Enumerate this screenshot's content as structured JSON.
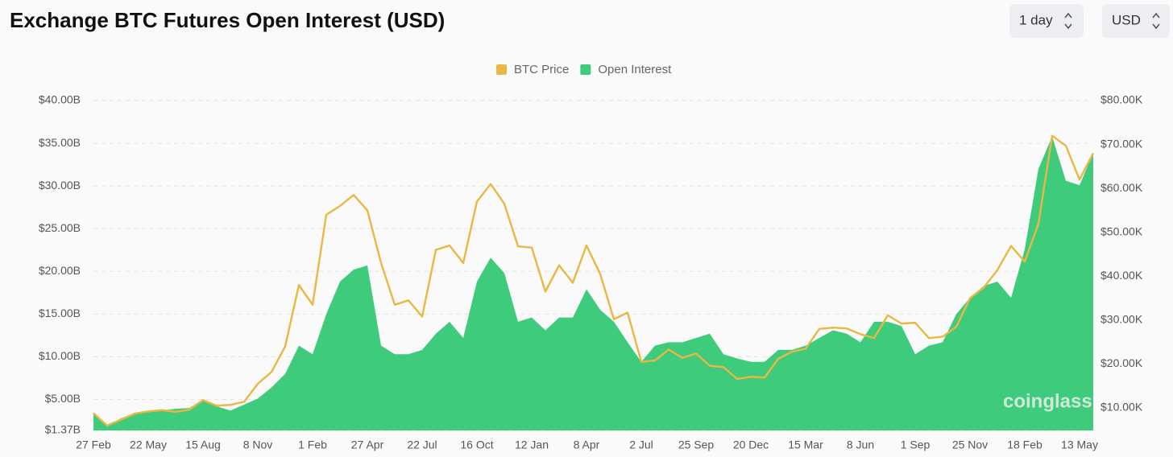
{
  "chart_data": {
    "type": "dual-axis-area-line",
    "title": "Exchange BTC Futures Open Interest (USD)",
    "controls": {
      "interval": "1 day",
      "currency": "USD"
    },
    "watermark": "coinglass",
    "legend": "top",
    "grid": true,
    "categories": [
      "27 Feb",
      null,
      null,
      null,
      "22 May",
      null,
      null,
      null,
      "15 Aug",
      null,
      null,
      null,
      "8 Nov",
      null,
      null,
      null,
      "1 Feb",
      null,
      null,
      null,
      "27 Apr",
      null,
      null,
      null,
      "22 Jul",
      null,
      null,
      null,
      "16 Oct",
      null,
      null,
      null,
      "12 Jan",
      null,
      null,
      null,
      "8 Apr",
      null,
      null,
      null,
      "2 Jul",
      null,
      null,
      null,
      "25 Sep",
      null,
      null,
      null,
      "20 Dec",
      null,
      null,
      null,
      "15 Mar",
      null,
      null,
      null,
      "8 Jun",
      null,
      null,
      null,
      "1 Sep",
      null,
      null,
      null,
      "25 Nov",
      null,
      null,
      null,
      "18 Feb",
      null,
      null,
      null,
      "13 May",
      null
    ],
    "series": [
      {
        "name": "BTC Price",
        "color": "#e9b744",
        "axis": "y2",
        "kind": "line",
        "values": [
          8.8,
          6,
          7.3,
          8.7,
          9.2,
          9.5,
          9.1,
          9.6,
          11.8,
          10.5,
          10.7,
          11.4,
          15.5,
          18.2,
          24,
          38,
          33.5,
          54,
          56,
          58.5,
          55,
          43,
          33.5,
          34.5,
          30.8,
          46,
          47,
          43,
          57,
          61,
          56.5,
          46.8,
          46.5,
          36.5,
          42.5,
          38.5,
          47,
          40.5,
          30.2,
          31.7,
          20.5,
          20.8,
          23.3,
          21.4,
          22.4,
          19.6,
          19.3,
          16.6,
          17.1,
          16.9,
          21.2,
          22.8,
          23.5,
          28,
          28.3,
          28.1,
          26.8,
          25.9,
          31.1,
          29.2,
          29.4,
          25.9,
          26.2,
          28.5,
          35,
          37.4,
          41.4,
          46.9,
          43.3,
          52,
          72,
          69.7,
          62,
          68
        ]
      },
      {
        "name": "Open Interest",
        "color": "#3fcb7c",
        "axis": "y",
        "kind": "area",
        "values": [
          3.3,
          1.8,
          2.8,
          3.3,
          3.5,
          3.7,
          3.9,
          4.0,
          5.0,
          4.2,
          3.7,
          4.4,
          5.1,
          6.4,
          8,
          11.3,
          10.3,
          15,
          18.8,
          20.2,
          20.7,
          11.3,
          10.3,
          10.3,
          10.8,
          12.7,
          14.1,
          12.2,
          18.8,
          21.6,
          19.8,
          14.1,
          14.6,
          13.1,
          14.6,
          14.6,
          17.9,
          15.5,
          14.1,
          11.7,
          9.4,
          11.3,
          11.7,
          11.7,
          12.2,
          12.7,
          10.3,
          9.8,
          9.4,
          9.4,
          10.8,
          10.8,
          11.3,
          12.2,
          13.1,
          12.7,
          11.7,
          14.1,
          14.1,
          13.6,
          10.3,
          11.3,
          11.7,
          15,
          16.9,
          18.3,
          18.8,
          16.9,
          22.6,
          32,
          35.8,
          30.6,
          30.1,
          33.9
        ]
      }
    ],
    "ylim": [
      1.37,
      40
    ],
    "yticks": [
      {
        "value": 1.37,
        "label": "$1.37B"
      },
      {
        "value": 5,
        "label": "$5.00B"
      },
      {
        "value": 10,
        "label": "$10.00B"
      },
      {
        "value": 15,
        "label": "$15.00B"
      },
      {
        "value": 20,
        "label": "$20.00B"
      },
      {
        "value": 25,
        "label": "$25.00B"
      },
      {
        "value": 30,
        "label": "$30.00B"
      },
      {
        "value": 35,
        "label": "$35.00B"
      },
      {
        "value": 40,
        "label": "$40.00B"
      }
    ],
    "y2lim": [
      4.87,
      80
    ],
    "y2ticks": [
      {
        "value": 10,
        "label": "$10.00K"
      },
      {
        "value": 20,
        "label": "$20.00K"
      },
      {
        "value": 30,
        "label": "$30.00K"
      },
      {
        "value": 40,
        "label": "$40.00K"
      },
      {
        "value": 50,
        "label": "$50.00K"
      },
      {
        "value": 60,
        "label": "$60.00K"
      },
      {
        "value": 70,
        "label": "$70.00K"
      },
      {
        "value": 80,
        "label": "$80.00K"
      }
    ]
  }
}
